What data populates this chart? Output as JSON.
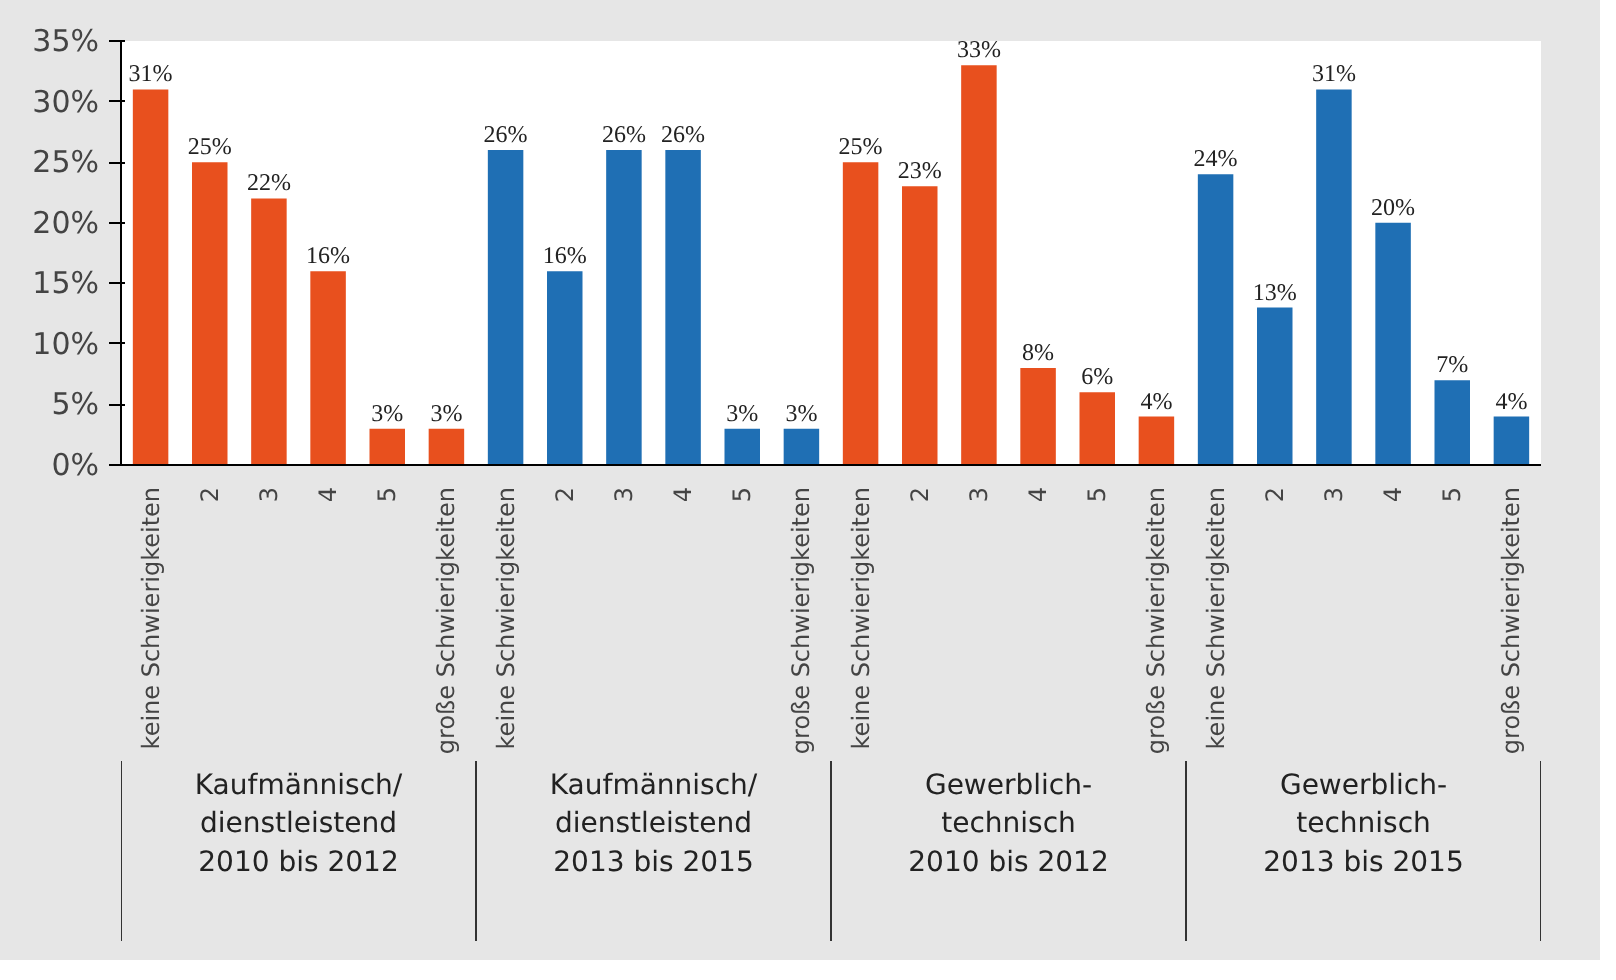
{
  "chart_data": {
    "type": "bar",
    "categories": [
      "keine Schwierigkeiten",
      "2",
      "3",
      "4",
      "5",
      "große Schwierigkeiten",
      "keine Schwierigkeiten",
      "2",
      "3",
      "4",
      "5",
      "große Schwierigkeiten",
      "keine Schwierigkeiten",
      "2",
      "3",
      "4",
      "5",
      "große Schwierigkeiten",
      "keine Schwierigkeiten",
      "2",
      "3",
      "4",
      "5",
      "große Schwierigkeiten"
    ],
    "values": [
      31,
      25,
      22,
      16,
      3,
      3,
      26,
      16,
      26,
      26,
      3,
      3,
      25,
      23,
      33,
      8,
      6,
      4,
      24,
      13,
      31,
      20,
      7,
      4
    ],
    "value_labels": [
      "31%",
      "25%",
      "22%",
      "16%",
      "3%",
      "3%",
      "26%",
      "16%",
      "26%",
      "26%",
      "3%",
      "3%",
      "25%",
      "23%",
      "33%",
      "8%",
      "6%",
      "4%",
      "24%",
      "13%",
      "31%",
      "20%",
      "7%",
      "4%"
    ],
    "colors": [
      "#e8501e",
      "#e8501e",
      "#e8501e",
      "#e8501e",
      "#e8501e",
      "#e8501e",
      "#1f6fb4",
      "#1f6fb4",
      "#1f6fb4",
      "#1f6fb4",
      "#1f6fb4",
      "#1f6fb4",
      "#e8501e",
      "#e8501e",
      "#e8501e",
      "#e8501e",
      "#e8501e",
      "#e8501e",
      "#1f6fb4",
      "#1f6fb4",
      "#1f6fb4",
      "#1f6fb4",
      "#1f6fb4",
      "#1f6fb4"
    ],
    "annotations": [
      "Kaufmännisch/\ndienstleistend\n2010 bis 2012",
      "Kaufmännisch/\ndienstleistend\n2013 bis 2015",
      "Gewerblich-\ntechnisch\n2010 bis 2012",
      "Gewerblich-\ntechnisch\n2013 bis 2015"
    ],
    "ylim": [
      0,
      35
    ],
    "yticks": [
      {
        "value": 0,
        "label": "0%"
      },
      {
        "value": 5,
        "label": "5%"
      },
      {
        "value": 10,
        "label": "10%"
      },
      {
        "value": 15,
        "label": "15%"
      },
      {
        "value": 20,
        "label": "20%"
      },
      {
        "value": 25,
        "label": "25%"
      },
      {
        "value": 30,
        "label": "30%"
      },
      {
        "value": 35,
        "label": "35%"
      }
    ],
    "grid": false
  }
}
